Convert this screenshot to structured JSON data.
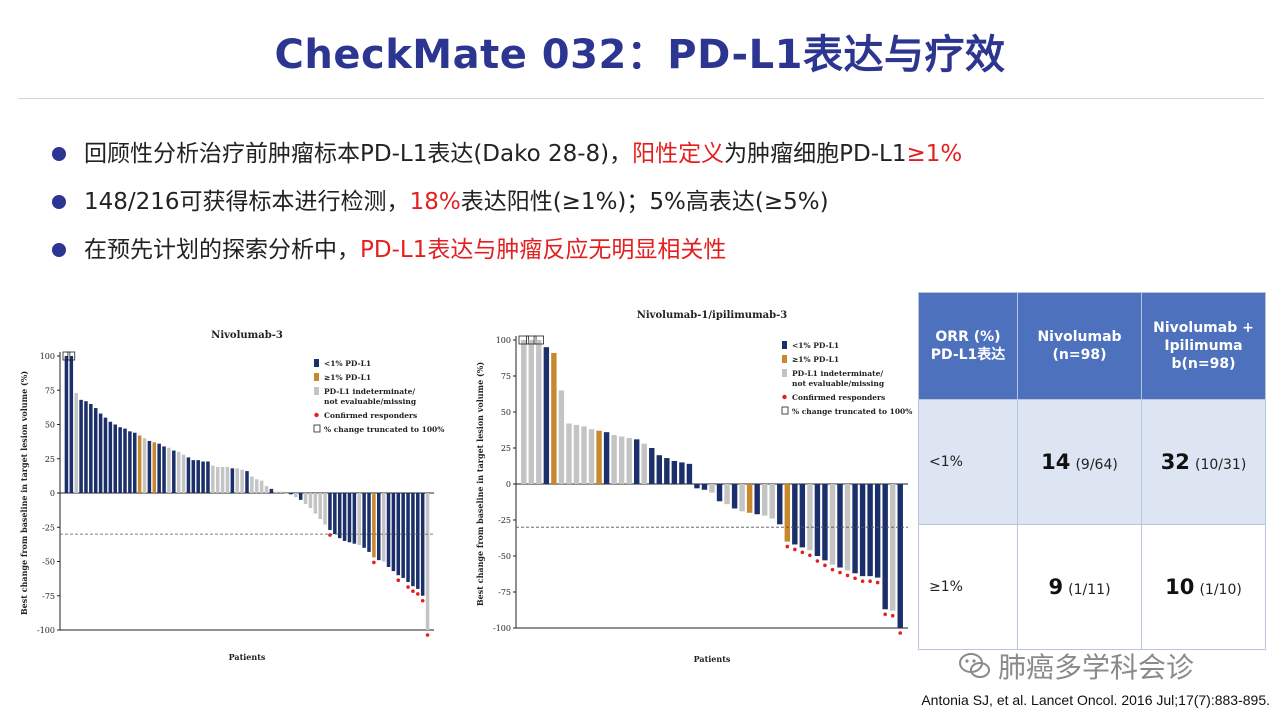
{
  "title": "CheckMate 032：PD-L1表达与疗效",
  "bullets": [
    {
      "parts": [
        {
          "text": "回顾性分析治疗前肿瘤标本PD-L1表达(Dako 28-8)，",
          "red": false
        },
        {
          "text": "阳性定义",
          "red": true
        },
        {
          "text": "为肿瘤细胞PD-L1",
          "red": false
        },
        {
          "text": "≥1%",
          "red": true
        }
      ]
    },
    {
      "parts": [
        {
          "text": "148/216可获得标本进行检测，",
          "red": false
        },
        {
          "text": "18%",
          "red": true
        },
        {
          "text": "表达阳性(≥1%)；5%高表达(≥5%)",
          "red": false
        }
      ]
    },
    {
      "parts": [
        {
          "text": "在预先计划的探索分析中，",
          "red": false
        },
        {
          "text": "PD-L1表达与肿瘤反应无明显相关性",
          "red": true
        }
      ]
    }
  ],
  "colors": {
    "title": "#2c3590",
    "accent_red": "#e41f1f",
    "navy": "#1b2f6b",
    "orange": "#c8882e",
    "gray": "#c4c4c4",
    "table_header": "#4e71be",
    "table_row": "#dde4f2"
  },
  "legend": {
    "lt1": "<1% PD-L1",
    "ge1": "≥1% PD-L1",
    "indet_line1": "PD-L1 indeterminate/",
    "indet_line2": "not evaluable/missing",
    "responders": "Confirmed responders",
    "truncated": "% change truncated to 100%"
  },
  "chart_data": [
    {
      "type": "bar",
      "title": "Nivolumab-3",
      "xlabel": "Patients",
      "ylabel": "Best change from baseline in target lesion volume (%)",
      "ylim": [
        -100,
        100
      ],
      "yticks": [
        100,
        75,
        50,
        25,
        0,
        -25,
        -50,
        -75,
        -100
      ],
      "reference_line": -30,
      "values": [
        100,
        100,
        73,
        68,
        67,
        65,
        62,
        58,
        55,
        52,
        50,
        48,
        47,
        45,
        44,
        42,
        40,
        38,
        37,
        36,
        34,
        33,
        31,
        30,
        28,
        26,
        24,
        24,
        23,
        23,
        20,
        19,
        19,
        19,
        18,
        18,
        17,
        16,
        12,
        10,
        9,
        5,
        3,
        1,
        1,
        0,
        -1,
        -3,
        -5,
        -8,
        -11,
        -15,
        -19,
        -23,
        -27,
        -30,
        -33,
        -35,
        -36,
        -37,
        -38,
        -40,
        -43,
        -47,
        -49,
        -50,
        -54,
        -57,
        -60,
        -62,
        -65,
        -68,
        -70,
        -75,
        -100
      ],
      "pdl1": [
        "N",
        "N",
        "G",
        "N",
        "N",
        "N",
        "N",
        "N",
        "N",
        "N",
        "N",
        "N",
        "N",
        "N",
        "N",
        "O",
        "G",
        "N",
        "O",
        "N",
        "N",
        "G",
        "N",
        "G",
        "G",
        "N",
        "N",
        "N",
        "N",
        "N",
        "G",
        "G",
        "G",
        "G",
        "N",
        "G",
        "G",
        "N",
        "G",
        "G",
        "G",
        "G",
        "N",
        "G",
        "G",
        "G",
        "N",
        "G",
        "N",
        "G",
        "G",
        "G",
        "G",
        "G",
        "N",
        "N",
        "N",
        "N",
        "N",
        "N",
        "G",
        "N",
        "N",
        "O",
        "N",
        "G",
        "N",
        "N",
        "N",
        "N",
        "N",
        "N",
        "N",
        "N",
        "G"
      ],
      "responders": [
        54,
        63,
        68,
        70,
        71,
        72,
        73,
        74
      ]
    },
    {
      "type": "bar",
      "title": "Nivolumab-1/ipilimumab-3",
      "xlabel": "Patients",
      "ylabel": "Best change from baseline in target lesion volume (%)",
      "ylim": [
        -100,
        100
      ],
      "yticks": [
        100,
        75,
        50,
        25,
        0,
        -25,
        -50,
        -75,
        -100
      ],
      "reference_line": -30,
      "values": [
        100,
        100,
        100,
        95,
        91,
        65,
        42,
        41,
        40,
        38,
        37,
        36,
        34,
        33,
        32,
        31,
        28,
        25,
        20,
        18,
        16,
        15,
        14,
        -3,
        -4,
        -6,
        -12,
        -14,
        -17,
        -19,
        -20,
        -21,
        -22,
        -24,
        -28,
        -40,
        -42,
        -44,
        -46,
        -50,
        -53,
        -56,
        -58,
        -60,
        -62,
        -64,
        -64,
        -65,
        -87,
        -88,
        -100
      ],
      "pdl1": [
        "G",
        "G",
        "G",
        "N",
        "O",
        "G",
        "G",
        "G",
        "G",
        "G",
        "O",
        "N",
        "G",
        "G",
        "G",
        "N",
        "G",
        "N",
        "N",
        "N",
        "N",
        "N",
        "N",
        "N",
        "N",
        "G",
        "N",
        "G",
        "N",
        "G",
        "O",
        "N",
        "G",
        "G",
        "N",
        "O",
        "N",
        "N",
        "G",
        "N",
        "N",
        "G",
        "N",
        "G",
        "N",
        "N",
        "N",
        "N",
        "N",
        "G",
        "N"
      ],
      "responders": [
        35,
        36,
        37,
        38,
        39,
        40,
        41,
        42,
        43,
        44,
        45,
        46,
        47,
        48,
        49,
        50
      ]
    }
  ],
  "table": {
    "header": [
      "ORR (%)\nPD-L1表达",
      "Nivolumab\n(n=98)",
      "Nivolumab +\nIpilimuma\nb(n=98)"
    ],
    "rows": [
      {
        "label": "<1%",
        "c1_big": "14",
        "c1_small": "(9/64)",
        "c2_big": "32",
        "c2_small": "(10/31)"
      },
      {
        "label": "≥1%",
        "c1_big": "9",
        "c1_small": "(1/11)",
        "c2_big": "10",
        "c2_small": "(1/10)"
      }
    ]
  },
  "watermark": "肺癌多学科会诊",
  "citation": "Antonia SJ, et al. Lancet Oncol. 2016 Jul;17(7):883-895."
}
